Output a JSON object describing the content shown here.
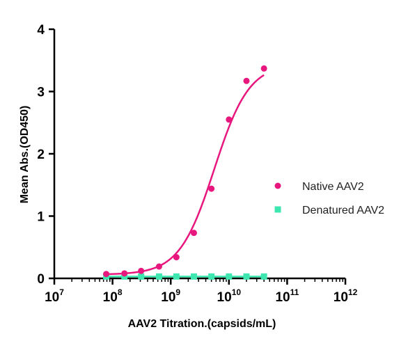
{
  "chart_data": {
    "type": "scatter",
    "xlabel": "AAV2 Titration.(capsids/mL)",
    "ylabel": "Mean Abs.(OD450)",
    "x_scale": "log10",
    "xlim": [
      10000000.0,
      1000000000000.0
    ],
    "ylim": [
      0,
      4
    ],
    "x_ticks": [
      {
        "base": "10",
        "exp": "7"
      },
      {
        "base": "10",
        "exp": "8"
      },
      {
        "base": "10",
        "exp": "9"
      },
      {
        "base": "10",
        "exp": "10"
      },
      {
        "base": "10",
        "exp": "11"
      },
      {
        "base": "10",
        "exp": "12"
      }
    ],
    "y_ticks": [
      "0",
      "1",
      "2",
      "3",
      "4"
    ],
    "legend_position": "right",
    "series": [
      {
        "name": "Native AAV2",
        "color": "#e8177e",
        "marker": "circle",
        "fit": "sigmoid",
        "x": [
          78000000.0,
          160000000.0,
          310000000.0,
          630000000.0,
          1250000000.0,
          2500000000.0,
          5000000000.0,
          10000000000.0,
          20000000000.0,
          40000000000.0
        ],
        "y": [
          0.07,
          0.08,
          0.12,
          0.19,
          0.34,
          0.73,
          1.44,
          2.55,
          3.17,
          3.37
        ]
      },
      {
        "name": "Denatured AAV2",
        "color": "#3ee6b0",
        "marker": "square",
        "x": [
          78000000.0,
          160000000.0,
          310000000.0,
          630000000.0,
          1250000000.0,
          2500000000.0,
          5000000000.0,
          10000000000.0,
          20000000000.0,
          40000000000.0
        ],
        "y": [
          0.03,
          0.03,
          0.03,
          0.03,
          0.03,
          0.03,
          0.03,
          0.03,
          0.03,
          0.03
        ]
      }
    ]
  }
}
